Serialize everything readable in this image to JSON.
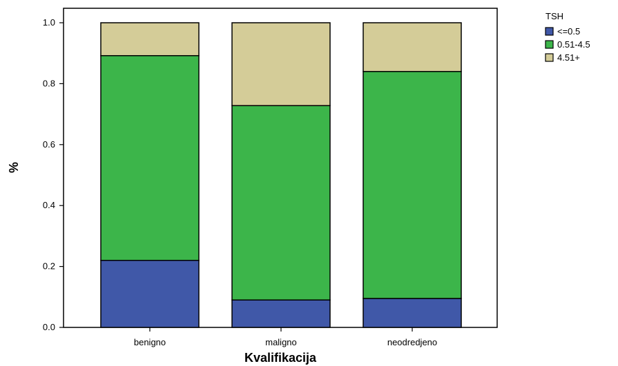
{
  "chart_data": {
    "type": "bar",
    "stacked": true,
    "categories": [
      "benigno",
      "maligno",
      "neodredjeno"
    ],
    "series": [
      {
        "name": "<=0.5",
        "color": "#4058a8",
        "values": [
          0.22,
          0.09,
          0.095
        ]
      },
      {
        "name": "0.51-4.5",
        "color": "#3cb54a",
        "values": [
          0.672,
          0.638,
          0.745
        ]
      },
      {
        "name": "4.51+",
        "color": "#d4cc98",
        "values": [
          0.108,
          0.272,
          0.16
        ]
      }
    ],
    "xlabel": "Kvalifikacija",
    "ylabel": "%",
    "ylim": [
      0,
      1.0
    ],
    "yticks": [
      "0.0",
      "0.2",
      "0.4",
      "0.6",
      "0.8",
      "1.0"
    ],
    "legend": {
      "title": "TSH",
      "placement": "right"
    },
    "grid": false
  }
}
